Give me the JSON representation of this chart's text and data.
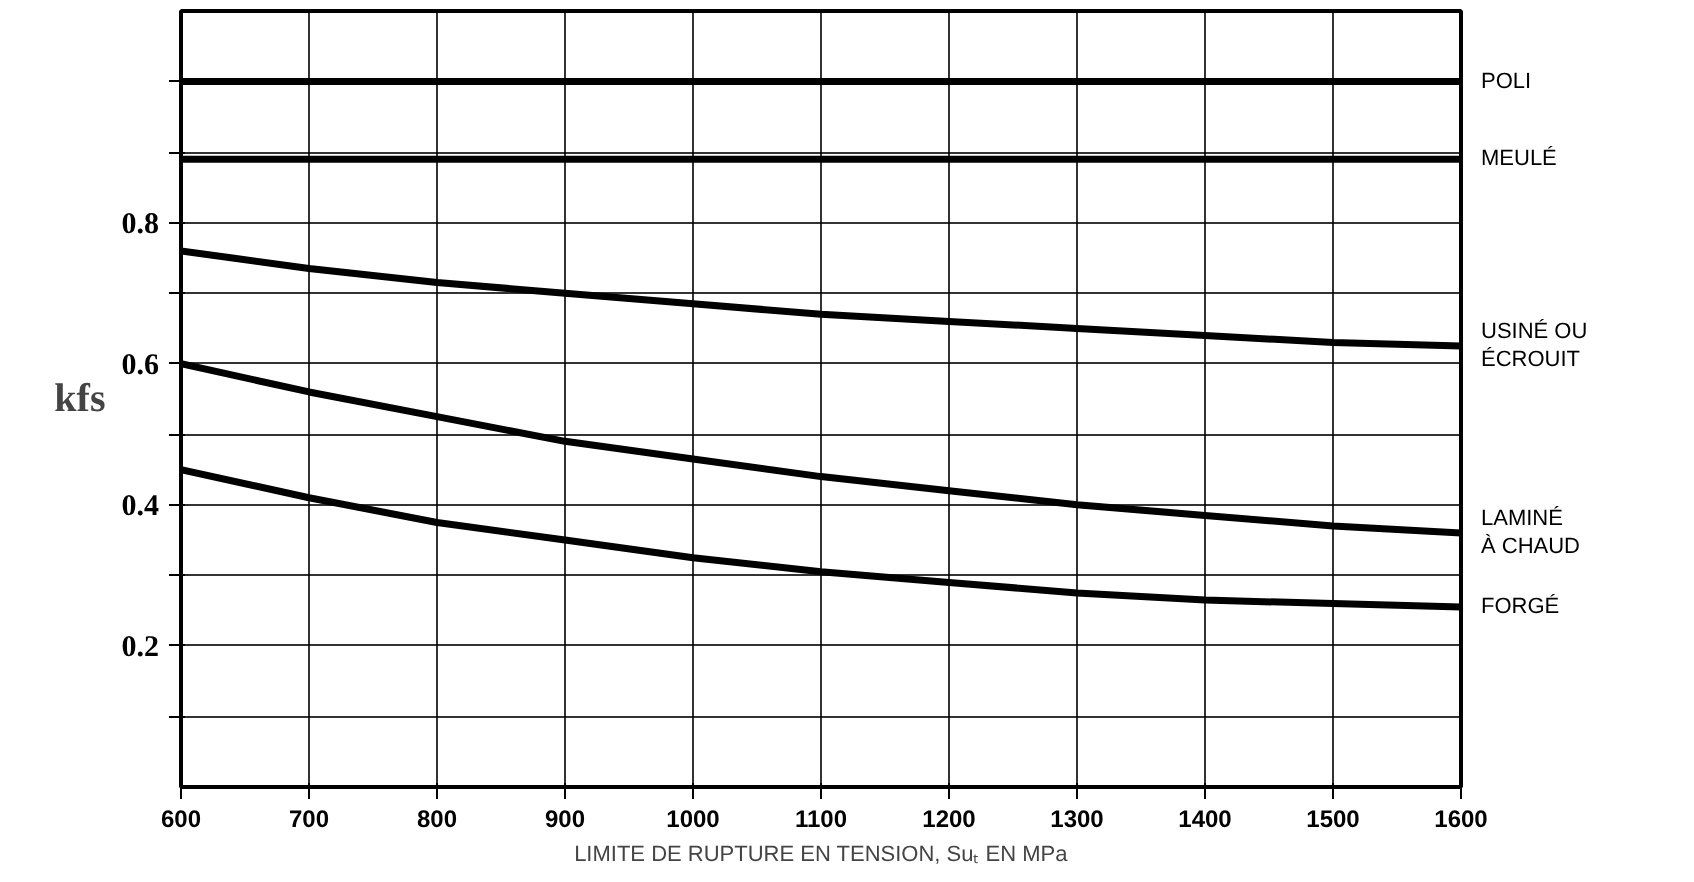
{
  "chart_data": {
    "type": "line",
    "xlabel": "LIMITE DE RUPTURE EN TENSION, Suₜ EN MPa",
    "ylabel": "kfs",
    "x": [
      600,
      700,
      800,
      900,
      1000,
      1100,
      1200,
      1300,
      1400,
      1500,
      1600
    ],
    "xlim": [
      600,
      1600
    ],
    "xticks": [
      600,
      700,
      800,
      900,
      1000,
      1100,
      1200,
      1300,
      1400,
      1500,
      1600
    ],
    "ylim": [
      0,
      1.1
    ],
    "yticks": [
      {
        "value": 0.1,
        "label": null
      },
      0.2,
      {
        "value": 0.3,
        "label": null
      },
      0.4,
      {
        "value": 0.5,
        "label": null
      },
      0.6,
      {
        "value": 0.7,
        "label": null
      },
      0.8,
      {
        "value": 0.9,
        "label": null
      },
      {
        "value": 1.0,
        "label": null
      }
    ],
    "grid": true,
    "legend": false,
    "marker": "none",
    "line_style": "solid",
    "series": [
      {
        "name": "POLI",
        "color": "#000000",
        "values": [
          1.0,
          1.0,
          1.0,
          1.0,
          1.0,
          1.0,
          1.0,
          1.0,
          1.0,
          1.0,
          1.0
        ]
      },
      {
        "name": "MEULÉ",
        "color": "#000000",
        "values": [
          0.89,
          0.89,
          0.89,
          0.89,
          0.89,
          0.89,
          0.89,
          0.89,
          0.89,
          0.89,
          0.89
        ]
      },
      {
        "name": "USINÉ OU\nÉCROUIT",
        "color": "#000000",
        "values": [
          0.76,
          0.735,
          0.715,
          0.7,
          0.685,
          0.67,
          0.66,
          0.65,
          0.64,
          0.63,
          0.625
        ]
      },
      {
        "name": "LAMINÉ\nÀ CHAUD",
        "color": "#000000",
        "values": [
          0.6,
          0.56,
          0.525,
          0.49,
          0.465,
          0.44,
          0.42,
          0.4,
          0.385,
          0.37,
          0.36
        ]
      },
      {
        "name": "FORGÉ",
        "color": "#000000",
        "values": [
          0.45,
          0.41,
          0.375,
          0.35,
          0.325,
          0.305,
          0.29,
          0.275,
          0.265,
          0.26,
          0.255
        ]
      }
    ]
  }
}
